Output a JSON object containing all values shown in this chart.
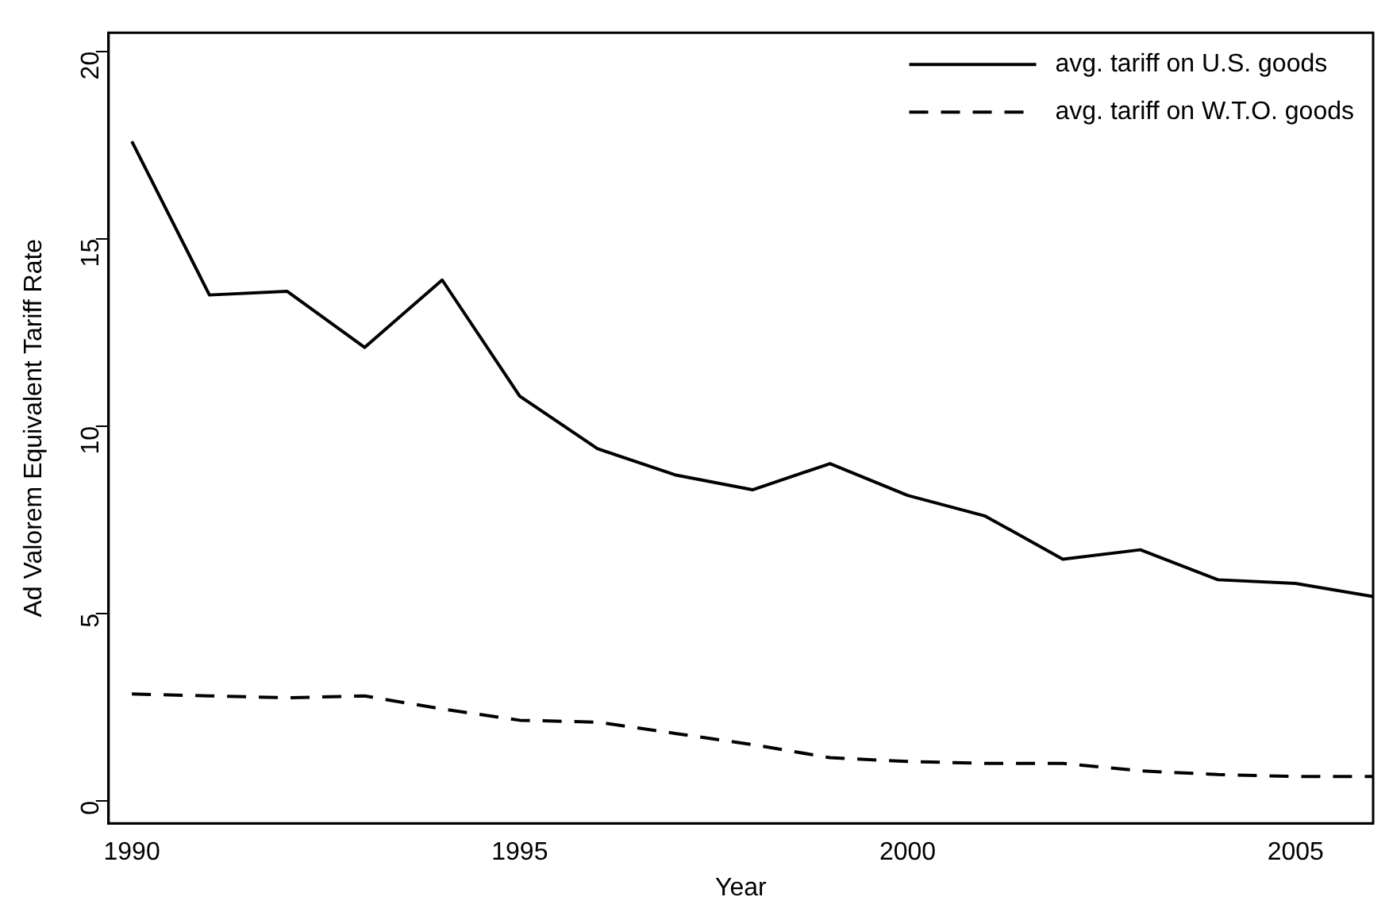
{
  "chart_data": {
    "type": "line",
    "xlabel": "Year",
    "ylabel": "Ad Valorem Equivalent Tariff Rate",
    "x": [
      1990,
      1991,
      1992,
      1993,
      1994,
      1995,
      1996,
      1997,
      1998,
      1999,
      2000,
      2001,
      2002,
      2003,
      2004,
      2005,
      2006
    ],
    "series": [
      {
        "name": "avg. tariff on U.S. goods",
        "color": "#000000",
        "line_style": "solid",
        "values": [
          17.6,
          13.5,
          13.6,
          12.1,
          13.9,
          10.8,
          9.4,
          8.7,
          8.3,
          9.0,
          8.15,
          7.6,
          6.45,
          6.7,
          5.9,
          5.8,
          5.45
        ]
      },
      {
        "name": "avg. tariff on W.T.O. goods",
        "color": "#000000",
        "line_style": "dashed",
        "values": [
          2.85,
          2.8,
          2.75,
          2.8,
          2.45,
          2.15,
          2.1,
          1.8,
          1.5,
          1.15,
          1.05,
          1.0,
          1.0,
          0.8,
          0.7,
          0.65,
          0.65
        ]
      }
    ],
    "xlim": [
      1989.7,
      2006
    ],
    "xticks": [
      1990,
      1995,
      2000,
      2005
    ],
    "ylim": [
      -0.6,
      20.5
    ],
    "yticks": [
      0,
      5,
      10,
      15,
      20
    ],
    "grid": false,
    "legend": "top right",
    "marker": "none"
  }
}
